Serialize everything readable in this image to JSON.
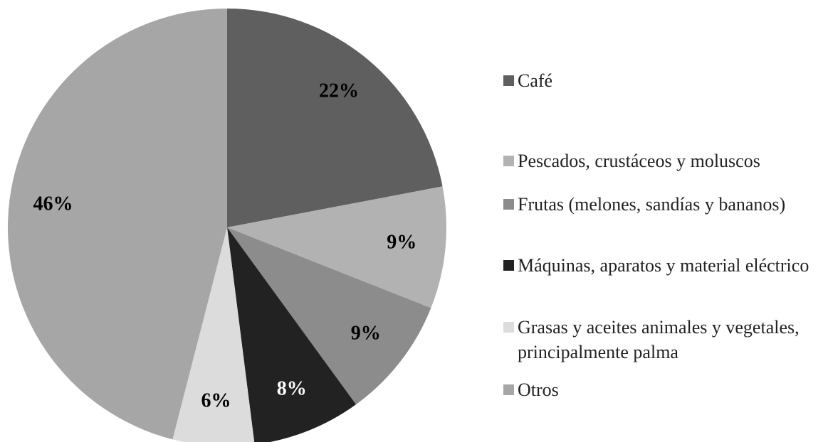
{
  "chart_data": {
    "type": "pie",
    "categories": [
      "Café",
      "Pescados, crustáceos y moluscos",
      "Frutas (melones, sandías y bananos)",
      "Máquinas, aparatos y material eléctrico",
      "Grasas y aceites animales y vegetales, principalmente palma",
      "Otros"
    ],
    "values": [
      22,
      9,
      9,
      8,
      6,
      46
    ],
    "value_labels": [
      "22%",
      "9%",
      "9%",
      "8%",
      "6%",
      "46%"
    ],
    "colors": [
      "#5f5f5f",
      "#b2b2b2",
      "#8c8c8c",
      "#222222",
      "#dcdcdc",
      "#a6a6a6"
    ],
    "legend": "right"
  }
}
